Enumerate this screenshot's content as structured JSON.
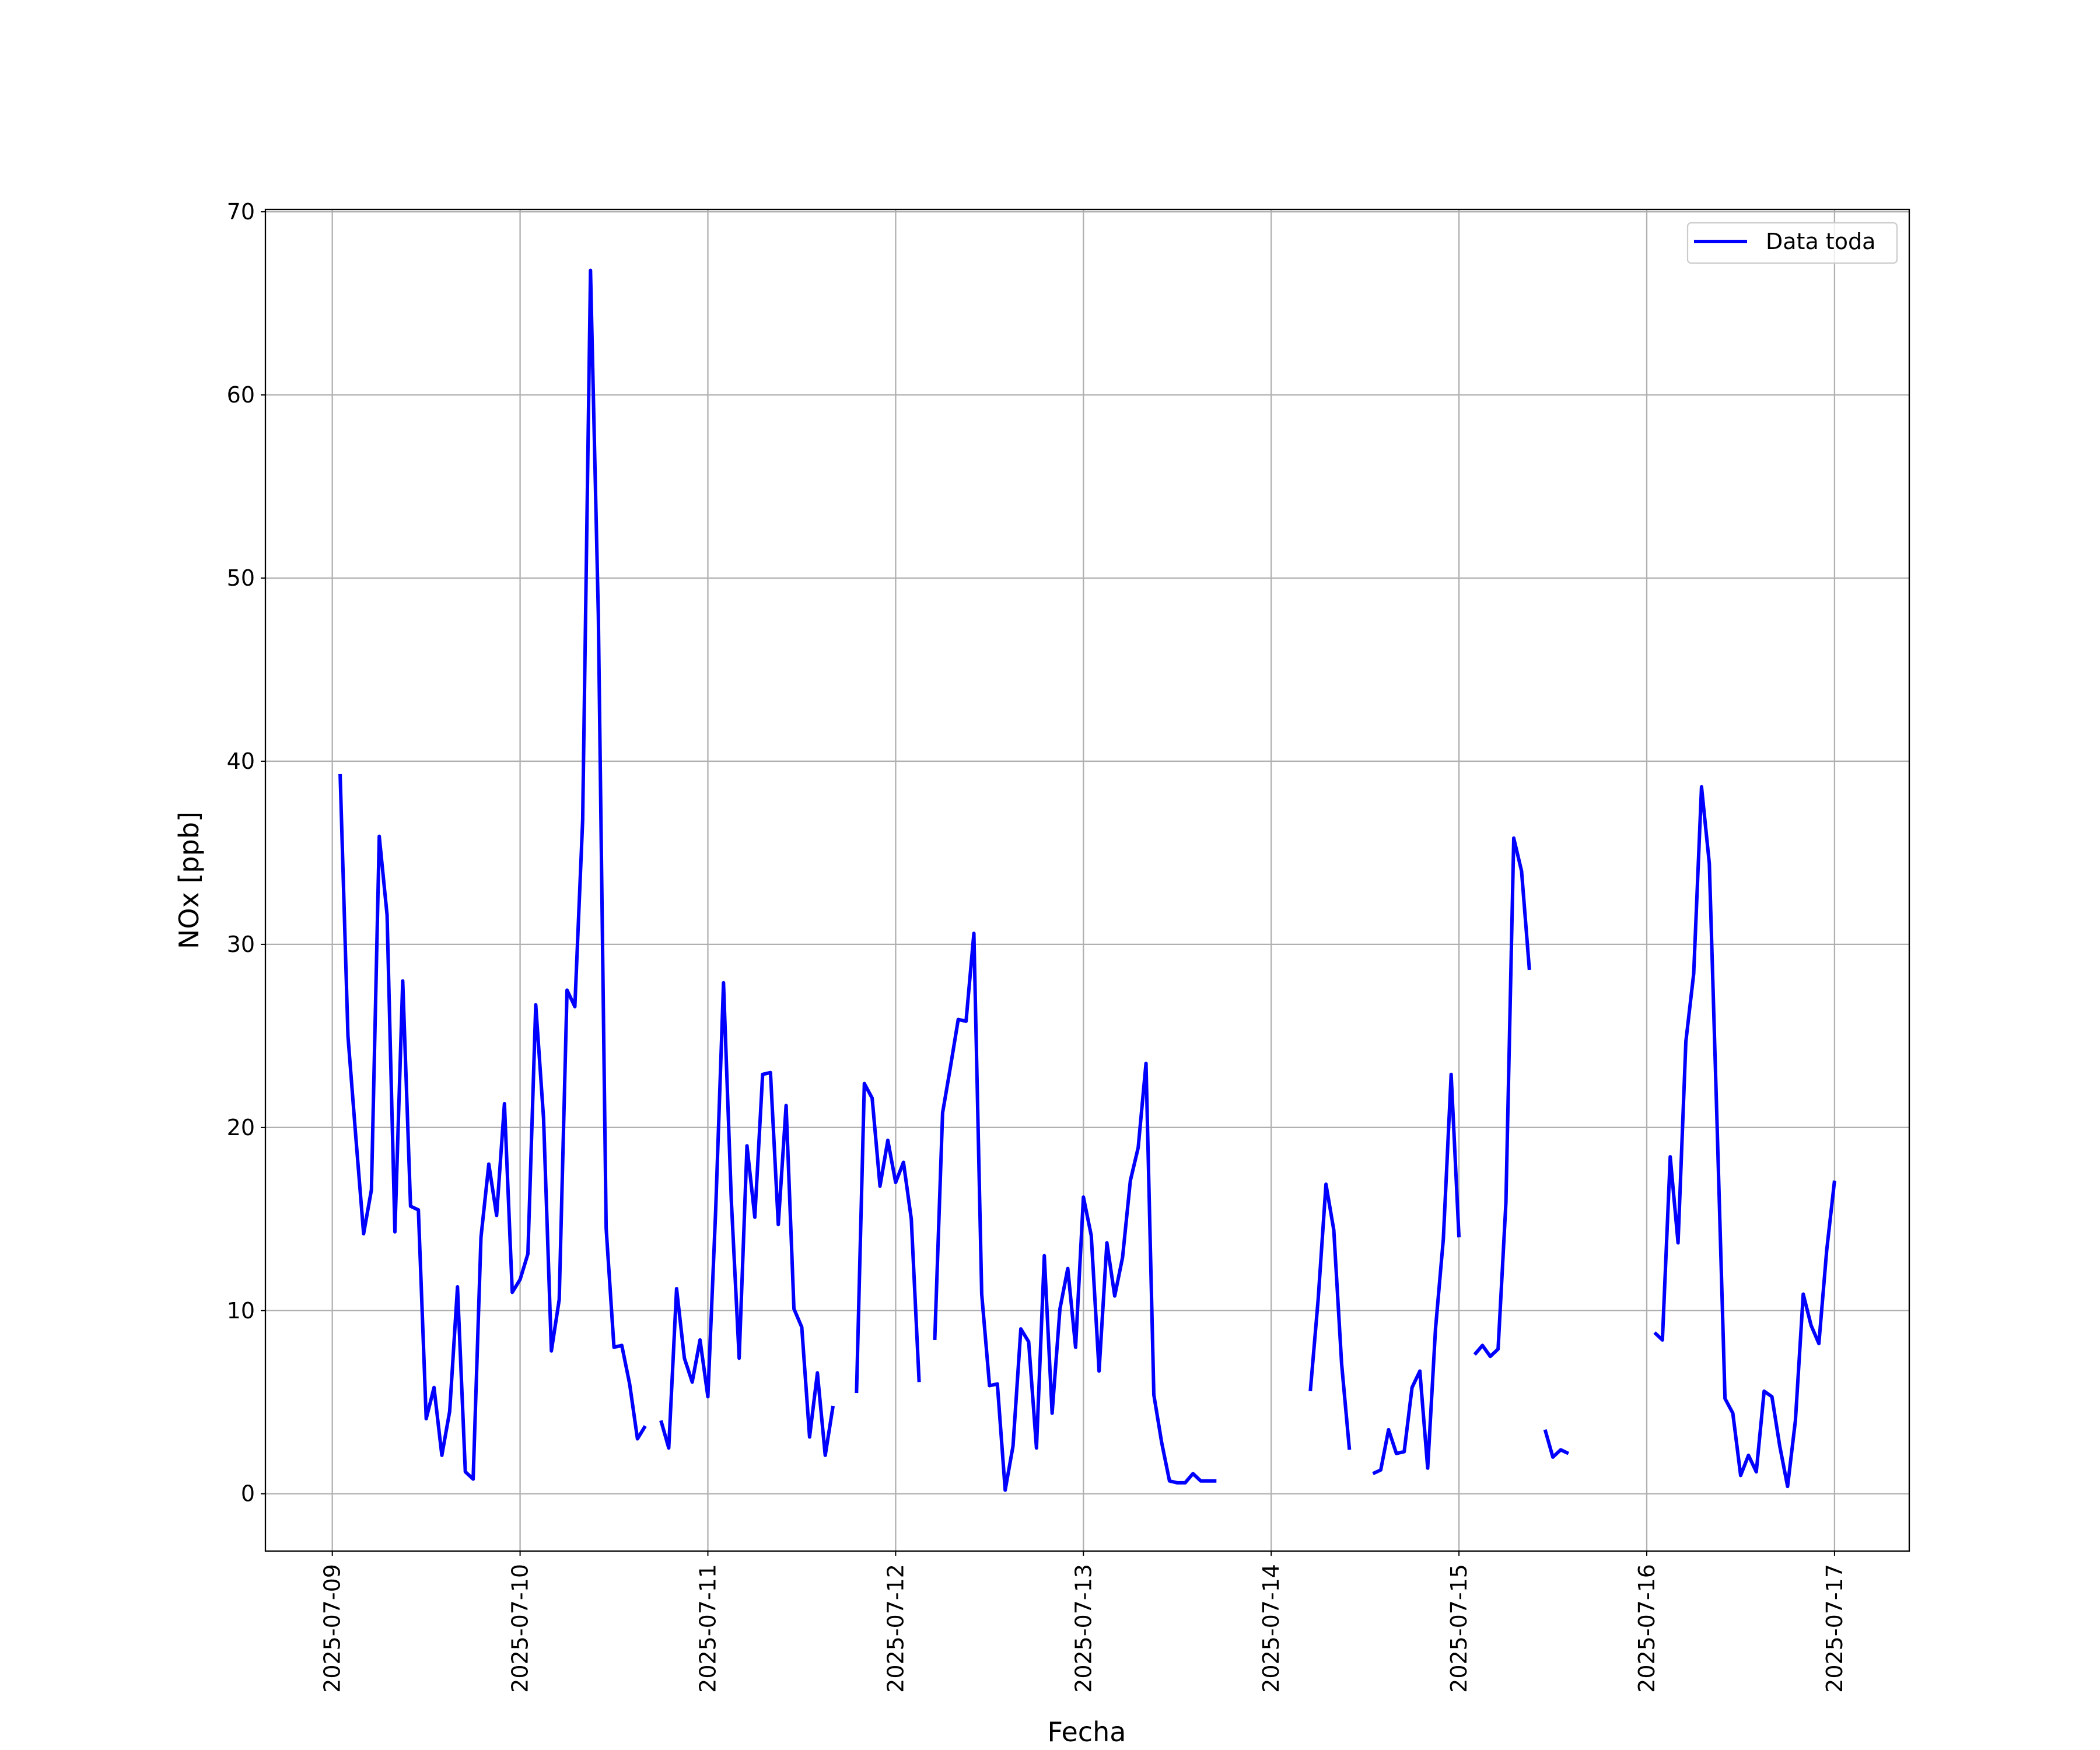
{
  "chart_data": {
    "type": "line",
    "xlabel": "Fecha",
    "ylabel": "NOx [ppb]",
    "x": [
      "2025-07-09 01:00",
      "2025-07-09 02:00",
      "2025-07-09 03:00",
      "2025-07-09 04:00",
      "2025-07-09 05:00",
      "2025-07-09 06:00",
      "2025-07-09 07:00",
      "2025-07-09 08:00",
      "2025-07-09 09:00",
      "2025-07-09 10:00",
      "2025-07-09 11:00",
      "2025-07-09 12:00",
      "2025-07-09 13:00",
      "2025-07-09 14:00",
      "2025-07-09 15:00",
      "2025-07-09 16:00",
      "2025-07-09 17:00",
      "2025-07-09 18:00",
      "2025-07-09 19:00",
      "2025-07-09 20:00",
      "2025-07-09 21:00",
      "2025-07-09 22:00",
      "2025-07-09 23:00",
      "2025-07-10 00:00",
      "2025-07-10 01:00",
      "2025-07-10 02:00",
      "2025-07-10 03:00",
      "2025-07-10 04:00",
      "2025-07-10 05:00",
      "2025-07-10 06:00",
      "2025-07-10 07:00",
      "2025-07-10 08:00",
      "2025-07-10 09:00",
      "2025-07-10 10:00",
      "2025-07-10 11:00",
      "2025-07-10 12:00",
      "2025-07-10 13:00",
      "2025-07-10 14:00",
      "2025-07-10 15:00",
      "2025-07-10 16:00",
      "2025-07-10 17:00",
      "2025-07-10 18:00",
      "2025-07-10 19:00",
      "2025-07-10 20:00",
      "2025-07-10 21:00",
      "2025-07-10 22:00",
      "2025-07-10 23:00",
      "2025-07-11 00:00",
      "2025-07-11 01:00",
      "2025-07-11 02:00",
      "2025-07-11 03:00",
      "2025-07-11 04:00",
      "2025-07-11 05:00",
      "2025-07-11 06:00",
      "2025-07-11 07:00",
      "2025-07-11 08:00",
      "2025-07-11 09:00",
      "2025-07-11 10:00",
      "2025-07-11 11:00",
      "2025-07-11 12:00",
      "2025-07-11 13:00",
      "2025-07-11 14:00",
      "2025-07-11 15:00",
      "2025-07-11 16:00",
      "2025-07-11 17:00",
      "2025-07-11 19:00",
      "2025-07-11 20:00",
      "2025-07-11 21:00",
      "2025-07-11 22:00",
      "2025-07-11 23:00",
      "2025-07-12 00:00",
      "2025-07-12 01:00",
      "2025-07-12 02:00",
      "2025-07-12 03:00",
      "2025-07-12 04:00",
      "2025-07-12 05:00",
      "2025-07-12 06:00",
      "2025-07-12 07:00",
      "2025-07-12 08:00",
      "2025-07-12 09:00",
      "2025-07-12 10:00",
      "2025-07-12 11:00",
      "2025-07-12 12:00",
      "2025-07-12 13:00",
      "2025-07-12 14:00",
      "2025-07-12 15:00",
      "2025-07-12 16:00",
      "2025-07-12 17:00",
      "2025-07-12 18:00",
      "2025-07-12 19:00",
      "2025-07-12 20:00",
      "2025-07-12 21:00",
      "2025-07-12 22:00",
      "2025-07-12 23:00",
      "2025-07-13 00:00",
      "2025-07-13 01:00",
      "2025-07-13 02:00",
      "2025-07-13 03:00",
      "2025-07-13 04:00",
      "2025-07-13 05:00",
      "2025-07-13 06:00",
      "2025-07-13 07:00",
      "2025-07-13 08:00",
      "2025-07-13 09:00",
      "2025-07-13 10:00",
      "2025-07-13 11:00",
      "2025-07-13 12:00",
      "2025-07-13 13:00",
      "2025-07-13 14:00",
      "2025-07-13 15:00",
      "2025-07-13 16:00",
      "2025-07-13 17:00",
      "2025-07-13 18:00",
      "2025-07-14 05:00",
      "2025-07-14 06:00",
      "2025-07-14 07:00",
      "2025-07-14 08:00",
      "2025-07-14 09:00",
      "2025-07-14 10:00",
      "2025-07-14 11:00",
      "2025-07-14 13:00",
      "2025-07-14 14:00",
      "2025-07-14 15:00",
      "2025-07-14 16:00",
      "2025-07-14 17:00",
      "2025-07-14 18:00",
      "2025-07-14 19:00",
      "2025-07-14 20:00",
      "2025-07-14 21:00",
      "2025-07-14 22:00",
      "2025-07-14 23:00",
      "2025-07-15 00:00",
      "2025-07-15 01:00",
      "2025-07-15 02:00",
      "2025-07-15 03:00",
      "2025-07-15 04:00",
      "2025-07-15 05:00",
      "2025-07-15 06:00",
      "2025-07-15 07:00",
      "2025-07-15 08:00",
      "2025-07-15 09:00",
      "2025-07-15 10:00",
      "2025-07-15 11:00",
      "2025-07-15 12:00",
      "2025-07-15 13:00",
      "2025-07-15 14:00",
      "2025-07-15 15:00",
      "2025-07-16 01:00",
      "2025-07-16 02:00",
      "2025-07-16 03:00",
      "2025-07-16 04:00",
      "2025-07-16 05:00",
      "2025-07-16 06:00",
      "2025-07-16 07:00",
      "2025-07-16 08:00",
      "2025-07-16 09:00",
      "2025-07-16 10:00",
      "2025-07-16 11:00",
      "2025-07-16 12:00",
      "2025-07-16 13:00",
      "2025-07-16 14:00",
      "2025-07-16 15:00",
      "2025-07-16 16:00",
      "2025-07-16 17:00",
      "2025-07-16 18:00",
      "2025-07-16 19:00",
      "2025-07-16 20:00",
      "2025-07-16 21:00",
      "2025-07-16 22:00",
      "2025-07-16 23:00",
      "2025-07-17 00:00"
    ],
    "series": [
      {
        "name": "Data toda",
        "color": "#0000ff",
        "values": [
          39.3,
          25,
          19.5,
          14.2,
          16.6,
          35.9,
          31.6,
          14.3,
          28,
          15.7,
          15.5,
          4.1,
          5.8,
          2.1,
          4.5,
          11.3,
          1.2,
          0.8,
          14,
          18,
          15.2,
          21.3,
          11,
          11.7,
          13.1,
          26.7,
          20.5,
          7.8,
          10.6,
          27.5,
          26.6,
          36.8,
          66.8,
          48,
          14.5,
          8,
          8.1,
          6,
          3,
          3.7,
          null,
          4,
          2.5,
          11.2,
          7.4,
          6.1,
          8.4,
          5.3,
          15.5,
          27.9,
          16,
          7.4,
          19,
          15.1,
          22.9,
          23,
          14.7,
          21.2,
          10.1,
          9.1,
          3.1,
          6.6,
          2.1,
          4.8,
          null,
          5.5,
          22.4,
          21.6,
          16.8,
          19.3,
          17,
          18.1,
          15,
          6.1,
          null,
          8.4,
          20.8,
          23.3,
          25.9,
          25.8,
          30.6,
          10.9,
          5.9,
          6,
          0.2,
          2.6,
          9,
          8.3,
          2.5,
          13,
          4.4,
          10.1,
          12.3,
          8,
          16.2,
          14.1,
          6.7,
          13.7,
          10.8,
          12.9,
          17.1,
          18.9,
          23.5,
          5.4,
          2.8,
          0.7,
          0.6,
          0.6,
          1.1,
          0.7,
          0.7,
          0.7,
          null,
          5.6,
          10.6,
          16.9,
          14.4,
          7.1,
          2.4,
          null,
          1.1,
          1.3,
          3.5,
          2.2,
          2.3,
          5.8,
          6.7,
          1.4,
          9,
          13.9,
          22.9,
          14,
          null,
          7.6,
          8.1,
          7.5,
          7.9,
          15.9,
          35.8,
          34,
          28.6,
          null,
          3.5,
          2,
          2.4,
          2.2,
          null,
          8.8,
          8.4,
          18.4,
          13.7,
          24.7,
          28.4,
          38.6,
          34.4,
          20,
          5.2,
          4.4,
          1,
          2.1,
          1.2,
          5.6,
          5.3,
          2.6,
          0.4,
          4,
          10.9,
          9.2,
          8.2,
          13.3,
          17.1
        ]
      }
    ],
    "xlim": [
      "2025-07-08 15:27",
      "2025-07-17 09:33"
    ],
    "xticks": [
      "2025-07-09",
      "2025-07-10",
      "2025-07-11",
      "2025-07-12",
      "2025-07-13",
      "2025-07-14",
      "2025-07-15",
      "2025-07-16",
      "2025-07-17"
    ],
    "ylim": [
      -3.13,
      70.13
    ],
    "yticks": [
      0,
      10,
      20,
      30,
      40,
      50,
      60,
      70
    ],
    "grid": true,
    "legend": "upper right"
  }
}
